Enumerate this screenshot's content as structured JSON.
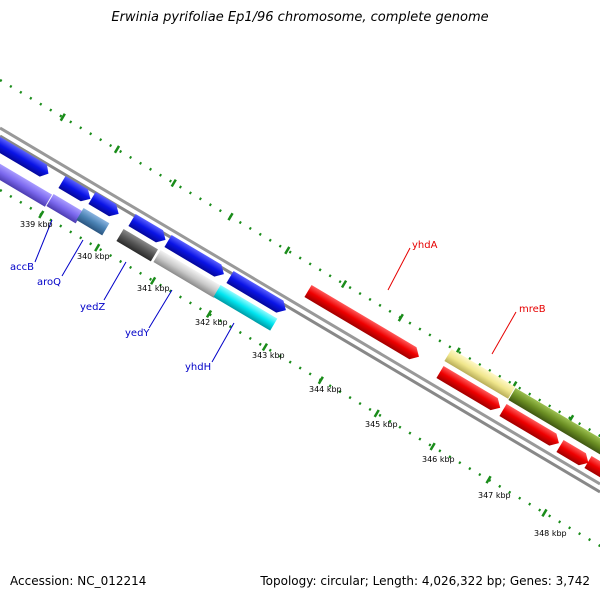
{
  "title": "Erwinia pyrifoliae Ep1/96 chromosome, complete genome",
  "accession": "Accession: NC_012214",
  "summary": "Topology: circular; Length: 4,026,322 bp; Genes: 3,742",
  "ticks": [
    "339 kbp",
    "340 kbp",
    "341 kbp",
    "342 kbp",
    "343 kbp",
    "344 kbp",
    "345 kbp",
    "346 kbp",
    "347 kbp",
    "348 kbp"
  ],
  "gene_labels": {
    "accB": "accB",
    "aroQ": "aroQ",
    "yedZ": "yedZ",
    "yedY": "yedY",
    "yhdH": "yhdH",
    "yhdA": "yhdA",
    "mreB": "mreB"
  },
  "colors": {
    "blue": "#0a14e6",
    "purple": "#7b68ee",
    "steel": "#4a82b4",
    "darkgray": "#555555",
    "lightgray": "#c8c8c8",
    "cyan": "#00e5f0",
    "red": "#ee0000",
    "khaki": "#f0e68c",
    "olive": "#6b8e23",
    "tick": "#1a8c1a",
    "backbone": "#888888"
  }
}
